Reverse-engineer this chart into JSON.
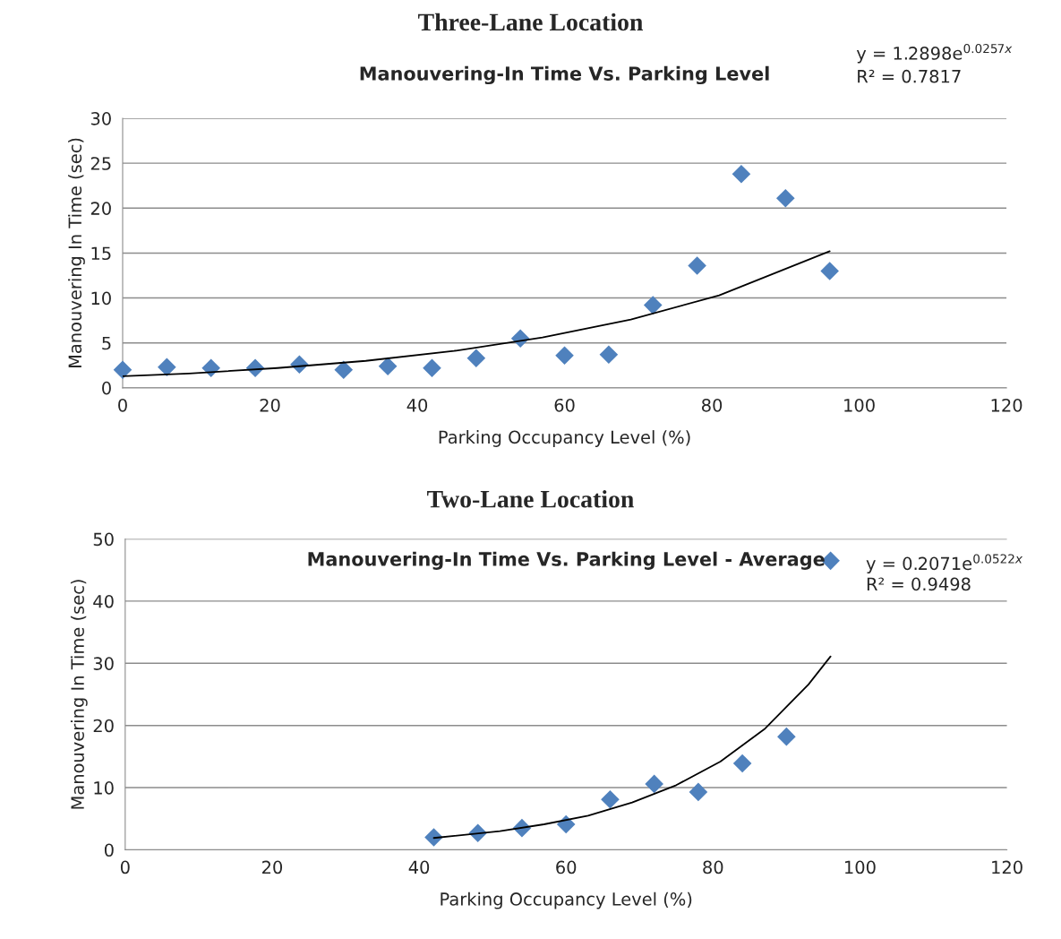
{
  "chart_data": [
    {
      "type": "scatter",
      "title": "Three-Lane Location",
      "subtitle": "Manouvering-In Time Vs. Parking Level",
      "xlabel": "Parking Occupancy Level (%)",
      "ylabel": "Manouvering In Time (sec)",
      "x": [
        0,
        6,
        12,
        18,
        24,
        30,
        36,
        42,
        48,
        54,
        60,
        66,
        72,
        78,
        84,
        90,
        96
      ],
      "series": [
        {
          "color": "#4f81bd",
          "values": [
            2.0,
            2.3,
            2.2,
            2.2,
            2.6,
            2.0,
            2.4,
            2.2,
            3.3,
            5.5,
            3.6,
            3.7,
            9.2,
            13.6,
            23.8,
            21.1,
            13.0
          ]
        },
        {
          "type": "line",
          "color": "#000000",
          "marker": "none",
          "x": [
            0,
            9,
            21,
            33,
            45,
            57,
            69,
            81,
            96
          ],
          "values": [
            1.3,
            1.6,
            2.2,
            3.0,
            4.1,
            5.6,
            7.6,
            10.3,
            15.2
          ]
        }
      ],
      "annotations": [
        "y = 1.2898e$^{0.0257x}$",
        "R² = 0.7817"
      ],
      "xlim": [
        0,
        120
      ],
      "xticks": [
        0,
        20,
        40,
        60,
        80,
        100,
        120
      ],
      "ylim": [
        0,
        30
      ],
      "yticks": [
        0,
        5,
        10,
        15,
        20,
        25,
        30
      ],
      "grid": "y",
      "marker": "diamond",
      "legend": false
    },
    {
      "type": "scatter",
      "title": "Two-Lane Location",
      "subtitle": "Manouvering-In Time Vs. Parking Level - Average",
      "xlabel": "Parking Occupancy Level (%)",
      "ylabel": "Manouvering In Time (sec)",
      "x": [
        42,
        48,
        54,
        60,
        66,
        72,
        78,
        84,
        90,
        96
      ],
      "series": [
        {
          "color": "#4f81bd",
          "values": [
            2.0,
            2.7,
            3.5,
            4.1,
            8.1,
            10.6,
            9.3,
            13.9,
            18.2,
            46.5
          ]
        },
        {
          "type": "line",
          "color": "#000000",
          "marker": "none",
          "x": [
            42,
            51,
            57,
            63,
            69,
            75,
            81,
            87,
            93,
            96
          ],
          "values": [
            1.9,
            3.0,
            4.1,
            5.5,
            7.6,
            10.4,
            14.2,
            19.4,
            26.6,
            31.1
          ]
        }
      ],
      "annotations": [
        "y = 0.2071e$^{0.0522x}$",
        "R² = 0.9498"
      ],
      "xlim": [
        0,
        120
      ],
      "xticks": [
        0,
        20,
        40,
        60,
        80,
        100,
        120
      ],
      "ylim": [
        0,
        50
      ],
      "yticks": [
        0,
        10,
        20,
        30,
        40,
        50
      ],
      "grid": "y",
      "marker": "diamond",
      "legend": false
    }
  ]
}
